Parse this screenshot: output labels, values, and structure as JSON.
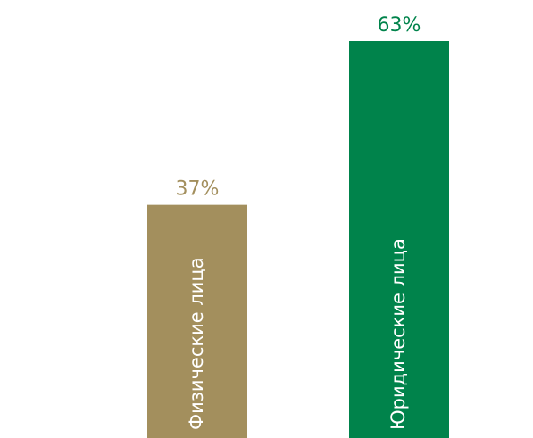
{
  "chart_data": {
    "type": "bar",
    "categories": [
      "Физические лица",
      "Юридические лица"
    ],
    "values": [
      37,
      63
    ],
    "value_labels": [
      "37%",
      "63%"
    ],
    "colors": [
      "#a38f5d",
      "#00834b"
    ],
    "ylim": [
      0,
      63
    ],
    "grid": false,
    "legend": "none"
  }
}
